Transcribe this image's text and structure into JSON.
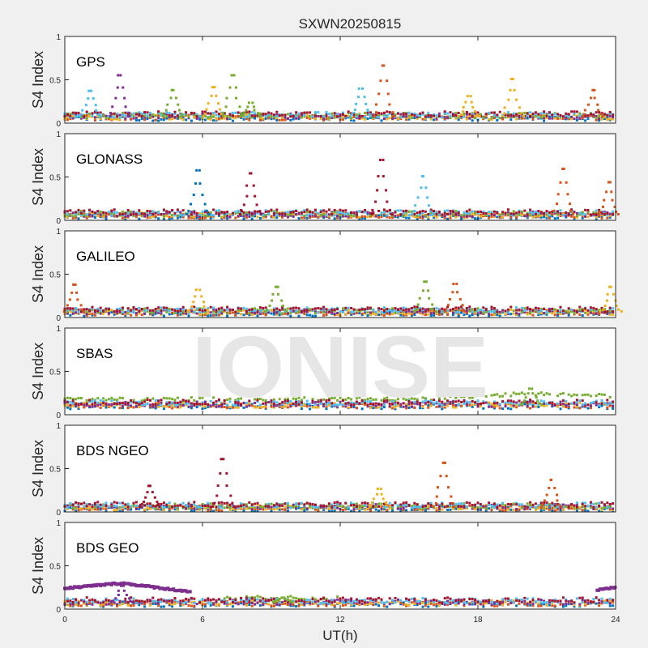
{
  "chart_data": {
    "type": "scatter",
    "title": "SXWN20250815",
    "xlabel": "UT(h)",
    "ylabel": "S4 Index",
    "xlim": [
      0,
      24
    ],
    "ylim": [
      0,
      1
    ],
    "xticks": [
      "0",
      "6",
      "12",
      "18",
      "24"
    ],
    "yticks": [
      "0",
      "0.5",
      "1"
    ],
    "watermark": "IONISE",
    "series_colors": [
      "#0072BD",
      "#D95319",
      "#EDB120",
      "#7E2F8E",
      "#77AC30",
      "#4DBEEE",
      "#A2142F"
    ],
    "panels": [
      {
        "name": "GPS",
        "baseline": 0.08,
        "peaks": [
          {
            "x": 1.1,
            "y": 0.42,
            "color": "#4DBEEE"
          },
          {
            "x": 2.4,
            "y": 0.63,
            "color": "#7E2F8E"
          },
          {
            "x": 4.7,
            "y": 0.43,
            "color": "#77AC30"
          },
          {
            "x": 6.5,
            "y": 0.47,
            "color": "#EDB120"
          },
          {
            "x": 7.3,
            "y": 0.63,
            "color": "#77AC30"
          },
          {
            "x": 8.1,
            "y": 0.26,
            "color": "#77AC30"
          },
          {
            "x": 12.9,
            "y": 0.45,
            "color": "#4DBEEE"
          },
          {
            "x": 13.9,
            "y": 0.76,
            "color": "#D95319"
          },
          {
            "x": 17.6,
            "y": 0.35,
            "color": "#EDB120"
          },
          {
            "x": 19.5,
            "y": 0.58,
            "color": "#EDB120"
          },
          {
            "x": 23.0,
            "y": 0.43,
            "color": "#D95319"
          }
        ]
      },
      {
        "name": "GLONASS",
        "baseline": 0.07,
        "peaks": [
          {
            "x": 5.8,
            "y": 0.66,
            "color": "#0072BD"
          },
          {
            "x": 8.1,
            "y": 0.62,
            "color": "#A2142F"
          },
          {
            "x": 13.8,
            "y": 0.8,
            "color": "#A2142F"
          },
          {
            "x": 15.6,
            "y": 0.58,
            "color": "#4DBEEE"
          },
          {
            "x": 21.7,
            "y": 0.68,
            "color": "#D95319"
          },
          {
            "x": 23.7,
            "y": 0.5,
            "color": "#D95319"
          }
        ]
      },
      {
        "name": "GALILEO",
        "baseline": 0.07,
        "peaks": [
          {
            "x": 0.4,
            "y": 0.43,
            "color": "#D95319"
          },
          {
            "x": 5.8,
            "y": 0.36,
            "color": "#EDB120"
          },
          {
            "x": 9.2,
            "y": 0.4,
            "color": "#77AC30"
          },
          {
            "x": 15.7,
            "y": 0.47,
            "color": "#77AC30"
          },
          {
            "x": 17.0,
            "y": 0.44,
            "color": "#D95319"
          },
          {
            "x": 23.8,
            "y": 0.4,
            "color": "#EDB120"
          }
        ]
      },
      {
        "name": "SBAS",
        "baseline": 0.12,
        "peaks": [
          {
            "x": 20.3,
            "y": 0.33,
            "color": "#77AC30"
          }
        ]
      },
      {
        "name": "BDS NGEO",
        "baseline": 0.06,
        "peaks": [
          {
            "x": 3.7,
            "y": 0.34,
            "color": "#A2142F"
          },
          {
            "x": 6.9,
            "y": 0.7,
            "color": "#A2142F"
          },
          {
            "x": 13.7,
            "y": 0.3,
            "color": "#EDB120"
          },
          {
            "x": 16.5,
            "y": 0.65,
            "color": "#D95319"
          },
          {
            "x": 21.2,
            "y": 0.42,
            "color": "#D95319"
          }
        ]
      },
      {
        "name": "BDS GEO",
        "baseline": 0.08,
        "peaks": [
          {
            "x": 2.5,
            "y": 0.3,
            "color": "#7E2F8E"
          },
          {
            "x": 9.5,
            "y": 0.14,
            "color": "#77AC30"
          }
        ],
        "purple_segments": [
          {
            "x_start": 0.0,
            "x_end": 5.5,
            "y_start": 0.24,
            "y_mid": 0.3,
            "y_end": 0.2
          },
          {
            "x_start": 23.2,
            "x_end": 24.0,
            "y_start": 0.22,
            "y_mid": 0.23,
            "y_end": 0.25
          }
        ]
      }
    ]
  }
}
